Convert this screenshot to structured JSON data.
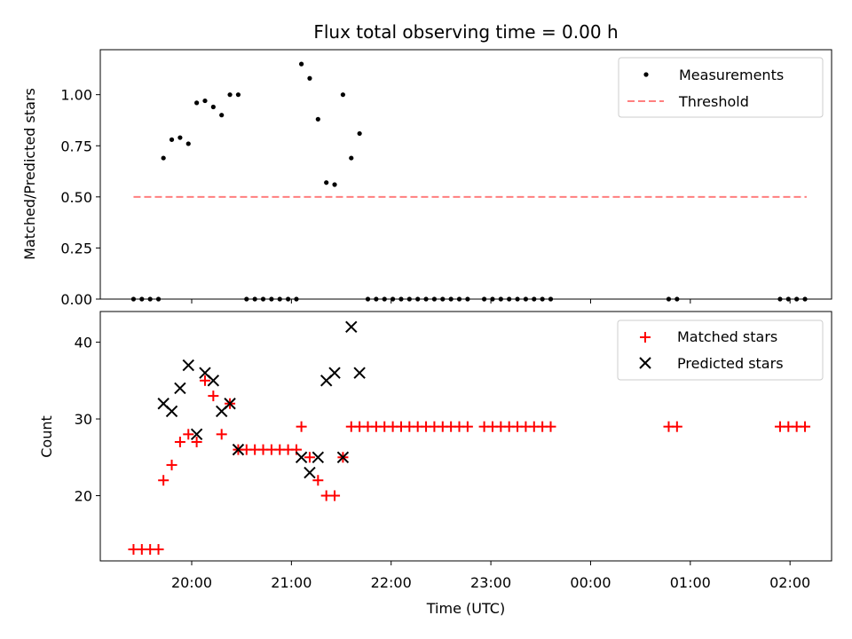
{
  "chart_data": [
    {
      "type": "scatter",
      "title": "Flux total observing time = 0.00 h",
      "xlabel": "",
      "ylabel": "Matched/Predicted stars",
      "ylim": [
        0,
        1.22
      ],
      "yticks": [
        "0.00",
        "0.25",
        "0.50",
        "0.75",
        "1.00"
      ],
      "ytick_values": [
        0,
        0.25,
        0.5,
        0.75,
        1.0
      ],
      "legend": {
        "position": "top-right",
        "entries": [
          "Measurements",
          "Threshold"
        ]
      },
      "threshold": {
        "name": "Threshold",
        "y": 0.5,
        "x_start": "19:25",
        "x_end": "02:10",
        "color": "#ff7f7f"
      },
      "series": [
        {
          "name": "Measurements",
          "color": "#000000",
          "points": [
            [
              "19:25",
              0
            ],
            [
              "19:30",
              0
            ],
            [
              "19:35",
              0
            ],
            [
              "19:40",
              0
            ],
            [
              "19:43",
              0.69
            ],
            [
              "19:48",
              0.78
            ],
            [
              "19:53",
              0.79
            ],
            [
              "19:58",
              0.76
            ],
            [
              "20:03",
              0.96
            ],
            [
              "20:08",
              0.97
            ],
            [
              "20:13",
              0.94
            ],
            [
              "20:18",
              0.9
            ],
            [
              "20:23",
              1.0
            ],
            [
              "20:28",
              1.0
            ],
            [
              "20:33",
              0
            ],
            [
              "20:38",
              0
            ],
            [
              "20:43",
              0
            ],
            [
              "20:48",
              0
            ],
            [
              "20:53",
              0
            ],
            [
              "20:58",
              0
            ],
            [
              "21:03",
              0
            ],
            [
              "21:06",
              1.15
            ],
            [
              "21:11",
              1.08
            ],
            [
              "21:16",
              0.88
            ],
            [
              "21:21",
              0.57
            ],
            [
              "21:26",
              0.56
            ],
            [
              "21:31",
              1.0
            ],
            [
              "21:36",
              0.69
            ],
            [
              "21:41",
              0.81
            ],
            [
              "21:46",
              0
            ],
            [
              "21:51",
              0
            ],
            [
              "21:56",
              0
            ],
            [
              "22:01",
              0
            ],
            [
              "22:06",
              0
            ],
            [
              "22:11",
              0
            ],
            [
              "22:16",
              0
            ],
            [
              "22:21",
              0
            ],
            [
              "22:26",
              0
            ],
            [
              "22:31",
              0
            ],
            [
              "22:36",
              0
            ],
            [
              "22:41",
              0
            ],
            [
              "22:46",
              0
            ],
            [
              "22:56",
              0
            ],
            [
              "23:01",
              0
            ],
            [
              "23:06",
              0
            ],
            [
              "23:11",
              0
            ],
            [
              "23:16",
              0
            ],
            [
              "23:21",
              0
            ],
            [
              "23:26",
              0
            ],
            [
              "23:31",
              0
            ],
            [
              "23:36",
              0
            ],
            [
              "00:47",
              0
            ],
            [
              "00:52",
              0
            ],
            [
              "01:54",
              0
            ],
            [
              "01:59",
              0
            ],
            [
              "02:04",
              0
            ],
            [
              "02:09",
              0
            ]
          ]
        }
      ]
    },
    {
      "type": "scatter",
      "title": "",
      "xlabel": "Time (UTC)",
      "ylabel": "Count",
      "ylim": [
        11.5,
        44
      ],
      "yticks": [
        "20",
        "30",
        "40"
      ],
      "ytick_values": [
        20,
        30,
        40
      ],
      "xticks": [
        "20:00",
        "21:00",
        "22:00",
        "23:00",
        "00:00",
        "01:00",
        "02:00"
      ],
      "x_range": [
        "19:05",
        "02:25"
      ],
      "legend": {
        "position": "top-right",
        "entries": [
          "Matched stars",
          "Predicted stars"
        ]
      },
      "series": [
        {
          "name": "Matched stars",
          "marker": "plus",
          "color": "#ff0000",
          "points": [
            [
              "19:25",
              13
            ],
            [
              "19:30",
              13
            ],
            [
              "19:35",
              13
            ],
            [
              "19:40",
              13
            ],
            [
              "19:43",
              22
            ],
            [
              "19:48",
              24
            ],
            [
              "19:53",
              27
            ],
            [
              "19:58",
              28
            ],
            [
              "20:03",
              27
            ],
            [
              "20:08",
              35
            ],
            [
              "20:13",
              33
            ],
            [
              "20:18",
              28
            ],
            [
              "20:23",
              32
            ],
            [
              "20:28",
              26
            ],
            [
              "20:33",
              26
            ],
            [
              "20:38",
              26
            ],
            [
              "20:43",
              26
            ],
            [
              "20:48",
              26
            ],
            [
              "20:53",
              26
            ],
            [
              "20:58",
              26
            ],
            [
              "21:03",
              26
            ],
            [
              "21:06",
              29
            ],
            [
              "21:11",
              25
            ],
            [
              "21:16",
              22
            ],
            [
              "21:21",
              20
            ],
            [
              "21:26",
              20
            ],
            [
              "21:31",
              25
            ],
            [
              "21:36",
              29
            ],
            [
              "21:41",
              29
            ],
            [
              "21:46",
              29
            ],
            [
              "21:51",
              29
            ],
            [
              "21:56",
              29
            ],
            [
              "22:01",
              29
            ],
            [
              "22:06",
              29
            ],
            [
              "22:11",
              29
            ],
            [
              "22:16",
              29
            ],
            [
              "22:21",
              29
            ],
            [
              "22:26",
              29
            ],
            [
              "22:31",
              29
            ],
            [
              "22:36",
              29
            ],
            [
              "22:41",
              29
            ],
            [
              "22:46",
              29
            ],
            [
              "22:56",
              29
            ],
            [
              "23:01",
              29
            ],
            [
              "23:06",
              29
            ],
            [
              "23:11",
              29
            ],
            [
              "23:16",
              29
            ],
            [
              "23:21",
              29
            ],
            [
              "23:26",
              29
            ],
            [
              "23:31",
              29
            ],
            [
              "23:36",
              29
            ],
            [
              "00:47",
              29
            ],
            [
              "00:52",
              29
            ],
            [
              "01:54",
              29
            ],
            [
              "01:59",
              29
            ],
            [
              "02:04",
              29
            ],
            [
              "02:09",
              29
            ]
          ]
        },
        {
          "name": "Predicted stars",
          "marker": "x",
          "color": "#000000",
          "points": [
            [
              "19:43",
              32
            ],
            [
              "19:48",
              31
            ],
            [
              "19:53",
              34
            ],
            [
              "19:58",
              37
            ],
            [
              "20:03",
              28
            ],
            [
              "20:08",
              36
            ],
            [
              "20:13",
              35
            ],
            [
              "20:18",
              31
            ],
            [
              "20:23",
              32
            ],
            [
              "20:28",
              26
            ],
            [
              "21:06",
              25
            ],
            [
              "21:11",
              23
            ],
            [
              "21:16",
              25
            ],
            [
              "21:21",
              35
            ],
            [
              "21:26",
              36
            ],
            [
              "21:31",
              25
            ],
            [
              "21:36",
              42
            ],
            [
              "21:41",
              36
            ]
          ]
        }
      ]
    }
  ]
}
